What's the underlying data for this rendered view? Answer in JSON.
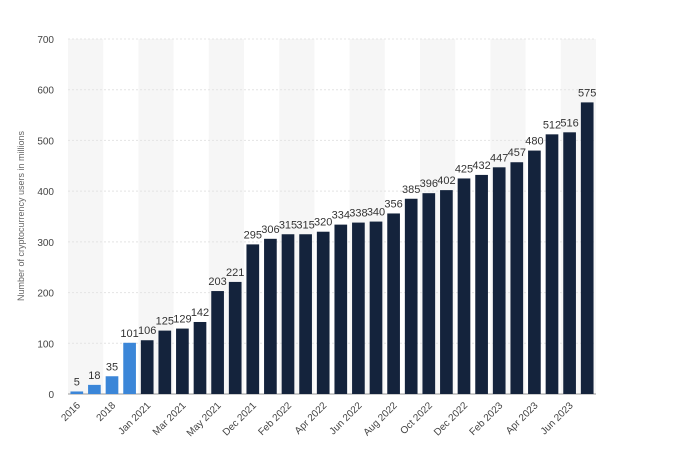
{
  "chart_data": {
    "type": "bar",
    "ylabel": "Number of cryptocurrency users in millions",
    "categories": [
      "2016",
      null,
      "2018",
      null,
      "Jan 2021",
      null,
      "Mar 2021",
      null,
      "May 2021",
      null,
      "Dec 2021",
      null,
      "Feb 2022",
      null,
      "Apr 2022",
      null,
      "Jun 2022",
      null,
      "Aug 2022",
      null,
      "Oct 2022",
      null,
      "Dec 2022",
      null,
      "Feb 2023",
      null,
      "Apr 2023",
      null,
      "Jun 2023",
      null
    ],
    "values": [
      5,
      18,
      35,
      101,
      106,
      125,
      129,
      142,
      203,
      221,
      295,
      306,
      315,
      315,
      320,
      334,
      338,
      340,
      356,
      385,
      396,
      402,
      425,
      432,
      447,
      457,
      480,
      512,
      516,
      575
    ],
    "colors": [
      "#3b86d8",
      "#3b86d8",
      "#3b86d8",
      "#3b86d8",
      "#14233c",
      "#14233c",
      "#14233c",
      "#14233c",
      "#14233c",
      "#14233c",
      "#14233c",
      "#14233c",
      "#14233c",
      "#14233c",
      "#14233c",
      "#14233c",
      "#14233c",
      "#14233c",
      "#14233c",
      "#14233c",
      "#14233c",
      "#14233c",
      "#14233c",
      "#14233c",
      "#14233c",
      "#14233c",
      "#14233c",
      "#14233c",
      "#14233c",
      "#14233c"
    ],
    "ylim": [
      0,
      700
    ],
    "yticks": [
      0,
      100,
      200,
      300,
      400,
      500,
      600,
      700
    ],
    "grid": true
  }
}
